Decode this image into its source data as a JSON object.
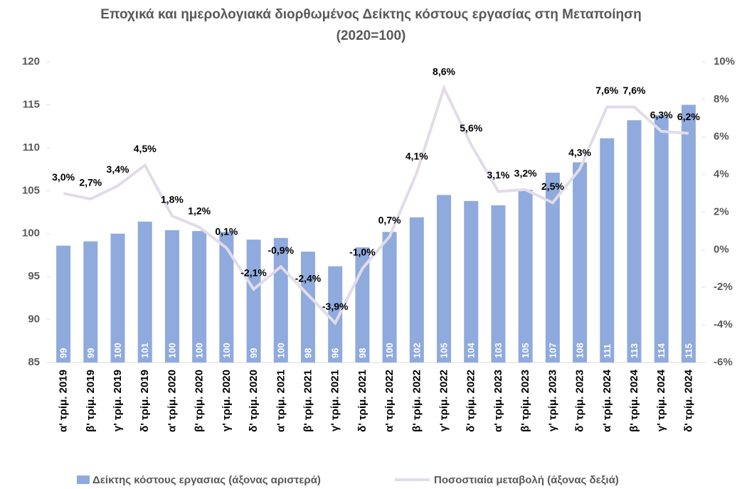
{
  "chart_data": {
    "type": "bar_line",
    "title": "Εποχικά και ημερολογιακά διορθωμένος Δείκτης κόστους εργασίας στη Μεταποίηση (2020=100)",
    "categories": [
      "α' τρίμ. 2019",
      "β' τρίμ. 2019",
      "γ' τρίμ. 2019",
      "δ' τρίμ. 2019",
      "α' τρίμ. 2020",
      "β' τρίμ. 2020",
      "γ' τρίμ. 2020",
      "δ' τρίμ. 2020",
      "α' τρίμ. 2021",
      "β' τρίμ. 2021",
      "γ' τρίμ. 2021",
      "δ' τρίμ. 2021",
      "α' τρίμ. 2022",
      "β' τρίμ. 2022",
      "γ' τρίμ. 2022",
      "δ' τρίμ. 2022",
      "α' τρίμ. 2023",
      "β' τρίμ. 2023",
      "γ' τρίμ. 2023",
      "δ' τρίμ. 2023",
      "α' τρίμ. 2024",
      "β' τρίμ. 2024",
      "γ' τρίμ. 2024",
      "δ' τρίμ. 2024"
    ],
    "series": [
      {
        "name": "Δείκτης κόστους εργασιας (άξονας αριστερά)",
        "color": "#8faadc",
        "kind": "bar",
        "values": [
          98.6,
          99.1,
          100.0,
          101.4,
          100.4,
          100.3,
          100.2,
          99.3,
          99.5,
          97.9,
          96.2,
          98.4,
          100.2,
          101.9,
          104.5,
          103.8,
          103.3,
          105.1,
          107.1,
          108.3,
          111.1,
          113.2,
          113.8,
          115.0
        ],
        "value_labels": [
          "99",
          "99",
          "100",
          "101",
          "100",
          "100",
          "100",
          "99",
          "100",
          "98",
          "96",
          "98",
          "100",
          "102",
          "105",
          "104",
          "103",
          "105",
          "107",
          "108",
          "111",
          "113",
          "114",
          "115"
        ]
      },
      {
        "name": "Ποσοστιαία μεταβολή (άξονας δεξιά)",
        "color": "#e2dbe8",
        "kind": "line",
        "axis": "y2",
        "values": [
          3.0,
          2.7,
          3.4,
          4.5,
          1.8,
          1.2,
          0.1,
          -2.1,
          -0.9,
          -2.4,
          -3.9,
          -1.0,
          0.7,
          4.1,
          8.6,
          5.6,
          3.1,
          3.2,
          2.5,
          4.3,
          7.6,
          7.6,
          6.3,
          6.2
        ],
        "value_labels": [
          "3,0%",
          "2,7%",
          "3,4%",
          "4,5%",
          "1,8%",
          "1,2%",
          "0,1%",
          "-2,1%",
          "-0,9%",
          "-2,4%",
          "-3,9%",
          "-1,0%",
          "0,7%",
          "4,1%",
          "8,6%",
          "5,6%",
          "3,1%",
          "3,2%",
          "2,5%",
          "4,3%",
          "7,6%",
          "7,6%",
          "6,3%",
          "6,2%"
        ]
      }
    ],
    "ylim": [
      85,
      120
    ],
    "yticks": [
      85,
      90,
      95,
      100,
      105,
      110,
      115,
      120
    ],
    "y2lim": [
      -6,
      10
    ],
    "y2ticks": [
      {
        "value": -6,
        "label": "-6%"
      },
      {
        "value": -4,
        "label": "-4%"
      },
      {
        "value": -2,
        "label": "-2%"
      },
      {
        "value": 0,
        "label": "0%"
      },
      {
        "value": 2,
        "label": "2%"
      },
      {
        "value": 4,
        "label": "4%"
      },
      {
        "value": 6,
        "label": "6%"
      },
      {
        "value": 8,
        "label": "8%"
      },
      {
        "value": 10,
        "label": "10%"
      }
    ],
    "legend": "bottom"
  }
}
